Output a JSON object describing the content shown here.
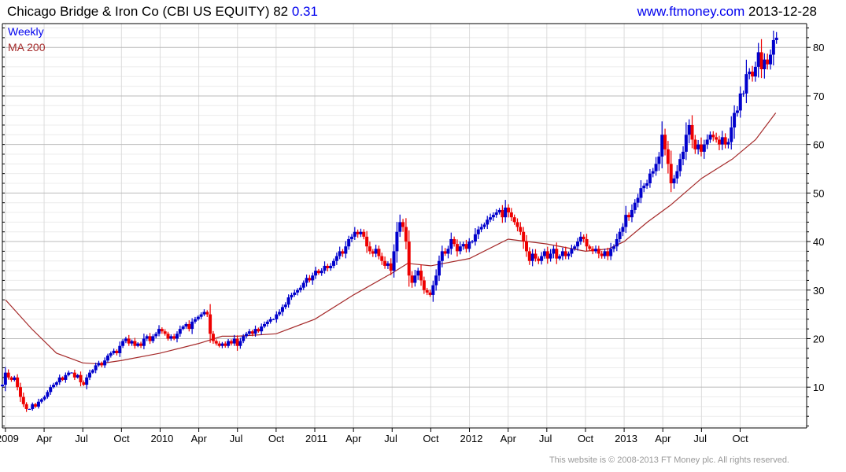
{
  "header": {
    "title": "Chicago Bridge & Iron Co (CBI US EQUITY) 82",
    "change": "0.31",
    "site": "www.ftmoney.com",
    "date": "2013-12-28"
  },
  "footer": "This website is © 2008-2013 FT Money plc. All rights reserved.",
  "colors": {
    "up": "#0000cc",
    "down": "#ee0000",
    "ma": "#a52a2a",
    "accent": "#0000ee"
  },
  "chart_data": {
    "type": "candlestick",
    "title": "Chicago Bridge & Iron Co (CBI US EQUITY)",
    "legend": [
      "Weekly",
      "MA 200"
    ],
    "legend_position": "top-left",
    "ylim": [
      1.6,
      84.9
    ],
    "yticks": [
      10,
      20,
      30,
      40,
      50,
      60,
      70,
      80
    ],
    "xlim": [
      2008.98,
      2014.18
    ],
    "xticks": [
      {
        "label": "2009",
        "t": 2009.0
      },
      {
        "label": "Apr",
        "t": 2009.25
      },
      {
        "label": "Jul",
        "t": 2009.5
      },
      {
        "label": "Oct",
        "t": 2009.75
      },
      {
        "label": "2010",
        "t": 2010.0
      },
      {
        "label": "Apr",
        "t": 2010.25
      },
      {
        "label": "Jul",
        "t": 2010.5
      },
      {
        "label": "Oct",
        "t": 2010.75
      },
      {
        "label": "2011",
        "t": 2011.0
      },
      {
        "label": "Apr",
        "t": 2011.25
      },
      {
        "label": "Jul",
        "t": 2011.5
      },
      {
        "label": "Oct",
        "t": 2011.75
      },
      {
        "label": "2012",
        "t": 2012.0
      },
      {
        "label": "Apr",
        "t": 2012.25
      },
      {
        "label": "Jul",
        "t": 2012.5
      },
      {
        "label": "Oct",
        "t": 2012.75
      },
      {
        "label": "2013",
        "t": 2013.0
      },
      {
        "label": "Apr",
        "t": 2013.25
      },
      {
        "label": "Jul",
        "t": 2013.5
      },
      {
        "label": "Oct",
        "t": 2013.75
      }
    ],
    "weekly_start": 2008.98,
    "weekly_end": 2013.985,
    "weekly_close": [
      10.5,
      13,
      12,
      11.5,
      12,
      10,
      8,
      6.5,
      5.5,
      5.5,
      6.5,
      6,
      7,
      7.5,
      8,
      9,
      10,
      10.5,
      11,
      12,
      11.5,
      12.5,
      13,
      13,
      12,
      12.5,
      11,
      10.5,
      12,
      13,
      13.5,
      14.5,
      15,
      14.5,
      15.5,
      16.5,
      17,
      17.5,
      17,
      18.5,
      19.5,
      20,
      19,
      19.5,
      18.5,
      19,
      18.5,
      20,
      20.5,
      19.5,
      20.5,
      21,
      22,
      21.5,
      21,
      20,
      20.5,
      20,
      21,
      22,
      22.5,
      23,
      22,
      23.5,
      24,
      24.5,
      25,
      25.5,
      25,
      21,
      19.5,
      19,
      18.5,
      19,
      18.5,
      19.5,
      19,
      20,
      18.5,
      19.5,
      20.5,
      21,
      21.5,
      21,
      22,
      21.5,
      22.5,
      23,
      23.5,
      24,
      24,
      25,
      25.5,
      26.5,
      27,
      28.5,
      29,
      29.5,
      30,
      30.5,
      31.5,
      32.5,
      32,
      33,
      34,
      33.5,
      34,
      35,
      34.5,
      35,
      36,
      37,
      38,
      37.5,
      39,
      40.5,
      41,
      42,
      41.5,
      42,
      41,
      39,
      38,
      37.5,
      38.5,
      37,
      36,
      35,
      35.5,
      34,
      38,
      42,
      44,
      43,
      40,
      33,
      31.5,
      33,
      34,
      32,
      30,
      29.5,
      29,
      31,
      33,
      36,
      38,
      37.5,
      38.5,
      40.5,
      39.5,
      38,
      39,
      39.5,
      38.5,
      40,
      40,
      41.5,
      42.5,
      43,
      43.5,
      44.5,
      45,
      45.5,
      46,
      46.5,
      45,
      47,
      46,
      45,
      44,
      43,
      42,
      40,
      38,
      36,
      37.5,
      36.5,
      36,
      37,
      38,
      36.5,
      37.5,
      38.5,
      36.5,
      37,
      38,
      37,
      37.5,
      38.5,
      39,
      40,
      41,
      40.5,
      39,
      38.5,
      38,
      38.5,
      37.5,
      37,
      38,
      37,
      38.5,
      39,
      40.5,
      42,
      43,
      45.5,
      45,
      46.5,
      48,
      49,
      51,
      51.5,
      52,
      54,
      54.5,
      56,
      57.5,
      62,
      59,
      56,
      52,
      53,
      54.5,
      57,
      58.5,
      62,
      64,
      61,
      59,
      60,
      58.5,
      60,
      61,
      62,
      61.5,
      61,
      60,
      61.5,
      60,
      60.5,
      63.5,
      66.5,
      67,
      70.5,
      70.5,
      74.5,
      75,
      74,
      76,
      79,
      75.5,
      77.5,
      76.5,
      78.5,
      81.5,
      82
    ],
    "ma200": [
      [
        2009.0,
        28
      ],
      [
        2009.17,
        22
      ],
      [
        2009.33,
        17
      ],
      [
        2009.5,
        15
      ],
      [
        2009.6,
        14.8
      ],
      [
        2009.75,
        15.5
      ],
      [
        2010.0,
        17
      ],
      [
        2010.25,
        19
      ],
      [
        2010.4,
        20.5
      ],
      [
        2010.5,
        20.5
      ],
      [
        2010.75,
        21
      ],
      [
        2011.0,
        24
      ],
      [
        2011.25,
        29
      ],
      [
        2011.5,
        33.5
      ],
      [
        2011.6,
        35.5
      ],
      [
        2011.75,
        35
      ],
      [
        2012.0,
        36.5
      ],
      [
        2012.25,
        40.5
      ],
      [
        2012.5,
        39.5
      ],
      [
        2012.75,
        38
      ],
      [
        2012.9,
        38.5
      ],
      [
        2013.0,
        40
      ],
      [
        2013.15,
        44
      ],
      [
        2013.3,
        47.5
      ],
      [
        2013.5,
        53
      ],
      [
        2013.7,
        57
      ],
      [
        2013.85,
        61
      ],
      [
        2013.98,
        66.5
      ]
    ]
  }
}
